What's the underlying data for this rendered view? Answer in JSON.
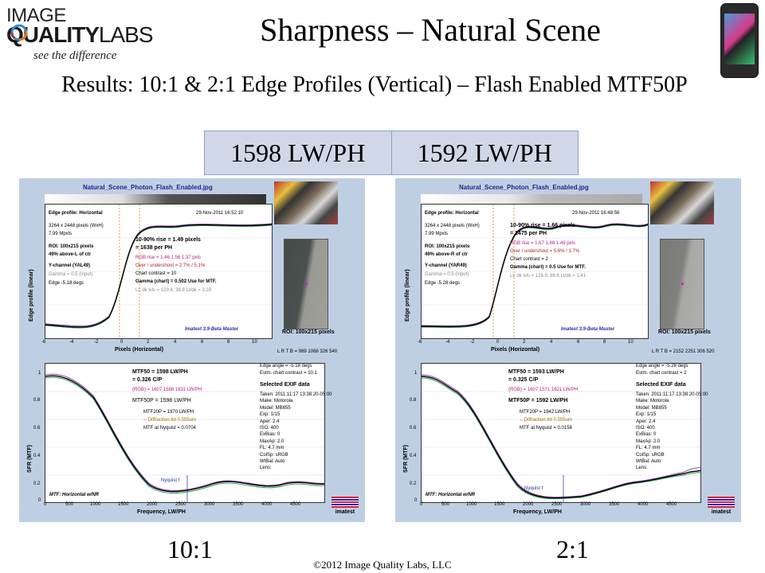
{
  "logo": {
    "line1": "IMAGE",
    "line2_bold": "QUALITY",
    "line2_rest": "LABS",
    "tagline": "see the difference"
  },
  "title": "Sharpness – Natural Scene",
  "subtitle": "Results:  10:1 & 2:1 Edge Profiles (Vertical) – Flash Enabled MTF50P",
  "table": {
    "cells": [
      "1598 LW/PH",
      "1592 LW/PH"
    ]
  },
  "panels": [
    {
      "title": "Natural_Scene_Photon_Flash_Enabled.jpg",
      "edge": {
        "heading": "Edge profile: Horizontal",
        "date": "29-Nov-2011 16:52:10",
        "info": [
          "3264 x 2448 pixels (WxH)",
          "7.99 Mpxls"
        ],
        "roi": [
          "ROI: 100x215 pixels",
          "49% above-L of ctr"
        ],
        "channel": "Y-channel  (YAL49)",
        "gamma_input": "Gamma = 0.5 (input)",
        "edge_deg": "Edge -5.18 degs",
        "rise": "10-90% rise = 1.49 pixels",
        "per_ph": "= 1638 per PH",
        "rgb_rise": "RGB rise = 1.46  1.56  1.37 pxls",
        "overshoot": "Over / undershoot = 2.7% / 5.1%",
        "contrast": "Chart contrast = 10",
        "gamma_chart": "Gamma (chart) = 0.502  Use for MTF.",
        "levels": "Lt, dk lvls = 123.4, 38.8   Lt/dk = 3.18",
        "version": "Imatest 3.9-Beta Master",
        "ylabel": "Edge profile (linear)",
        "xlabel": "Pixels (Horizontal)",
        "xticks": [
          "-6",
          "-4",
          "-2",
          "0",
          "2",
          "4",
          "6",
          "8",
          "10"
        ]
      },
      "roi_box": {
        "label": "ROI:  100x215 pixels",
        "coords": "L R T B = 969 1068  326 540"
      },
      "mtf": {
        "mtf50": "MTF50 = 1598 LW/PH",
        "cp": "= 0.326 C/P",
        "rgb": "(RGB) = 1607  1588  1631 LW/PH",
        "mtf50p": "MTF50P = 1598 LW/PH",
        "mtf20p": "MTF20P = 1970 LW/PH",
        "diffraction": "-- Diffraction-ltd  0.555um",
        "nyquist": "MTF at Nyquist = 0.0704",
        "footer": "MTF: Horizontal w/NR",
        "nyq_label": "Nyquist f",
        "ylabel": "SFR (MTF)",
        "xlabel": "Frequency, LW/PH",
        "xticks": [
          "0",
          "500",
          "1000",
          "1500",
          "2000",
          "2500",
          "3000",
          "3500",
          "4000",
          "4500"
        ],
        "yticks": [
          "1",
          "0.8",
          "0.6",
          "0.4",
          "0.2",
          "0"
        ]
      },
      "side": {
        "lines": [
          "Edge angle = -5.18 degs",
          "Estm. chart contrast = 10.1"
        ],
        "exif_title": "Selected EXIF data",
        "exif": [
          "Taken: 2011:11:17 13:38:20-05:00",
          "Make:  Motorola",
          "Model:  MB855",
          "Exp:   1/15",
          "Aper:   2.4",
          "ISO:    400",
          "ExBias:  0",
          "MaxAp:  2.0",
          "FL:    4.7 mm",
          "ColSp:  sRGB",
          "WtBal:  Auto",
          "Lens:"
        ]
      },
      "imatest": "imatest"
    },
    {
      "title": "Natural_Scene_Photon_Flash_Enabled.jpg",
      "edge": {
        "heading": "Edge profile: Horizontal",
        "date": "29-Nov-2011 16:48:58",
        "info": [
          "3264 x 2448 pixels (WxH)",
          "7.99 Mpxls"
        ],
        "roi": [
          "ROI: 100x215 pixels",
          "49% above-R of ctr"
        ],
        "channel": "Y-channel  (YAR49)",
        "gamma_input": "Gamma = 0.5 (input)",
        "edge_deg": "Edge -5.28 degs",
        "rise": "10-90% rise = 1.66 pixels",
        "per_ph": "= 1475 per PH",
        "rgb_rise": "RGB rise = 1.67  1.68  1.49 pxls",
        "overshoot": "Over / undershoot = 5.6% / 1.7%",
        "contrast": "Chart contrast = 2",
        "gamma_chart": "Gamma (chart) = 0.5  Use for MTF.",
        "levels": "Lt, dk lvls = 126.9, 89.6   Lt/dk = 1.41",
        "version": "Imatest 3.9-Beta Master",
        "ylabel": "Edge profile (linear)",
        "xlabel": "Pixels (Horizontal)",
        "xticks": [
          "-6",
          "-4",
          "-2",
          "0",
          "2",
          "4",
          "6",
          "8",
          "10"
        ]
      },
      "roi_box": {
        "label": "ROI:  100x215 pixels",
        "coords": "L R T B = 2152 2251  306 520"
      },
      "mtf": {
        "mtf50": "MTF50 = 1593 LW/PH",
        "cp": "= 0.325 C/P",
        "rgb": "(RGB) = 1607  1571  1621 LW/PH",
        "mtf50p": "MTF50P = 1592 LW/PH",
        "mtf20p": "MTF20P = 1942 LW/PH",
        "diffraction": "-- Diffraction-ltd  0.555um",
        "nyquist": "MTF at Nyquist = 0.0158",
        "footer": "MTF: Horizontal w/NR",
        "nyq_label": "Nyquist f",
        "ylabel": "SFR (MTF)",
        "xlabel": "Frequency, LW/PH",
        "xticks": [
          "0",
          "500",
          "1000",
          "1500",
          "2000",
          "2500",
          "3000",
          "3500",
          "4000",
          "4500"
        ],
        "yticks": [
          "1",
          "0.8",
          "0.6",
          "0.4",
          "0.2",
          "0"
        ]
      },
      "side": {
        "lines": [
          "Edge angle = -5.28 degs",
          "Estm. chart contrast = 2"
        ],
        "exif_title": "Selected EXIF data",
        "exif": [
          "Taken: 2011:11:17 13:38:20-05:00",
          "Make:  Motorola",
          "Model:  MB855",
          "Exp:   1/15",
          "Aper:   2.4",
          "ISO:    400",
          "ExBias:  0",
          "MaxAp:  2.0",
          "FL:    4.7 mm",
          "ColSp:  sRGB",
          "WtBal:  Auto",
          "Lens:"
        ]
      },
      "imatest": "imatest"
    }
  ],
  "labels": {
    "left": "10:1",
    "right": "2:1"
  },
  "copyright": "©2012 Image Quality Labs, LLC",
  "colors": {
    "panel_bg": "#bfcfe3",
    "table_bg": "#d0d8e8",
    "table_border": "#8ea0c4"
  }
}
